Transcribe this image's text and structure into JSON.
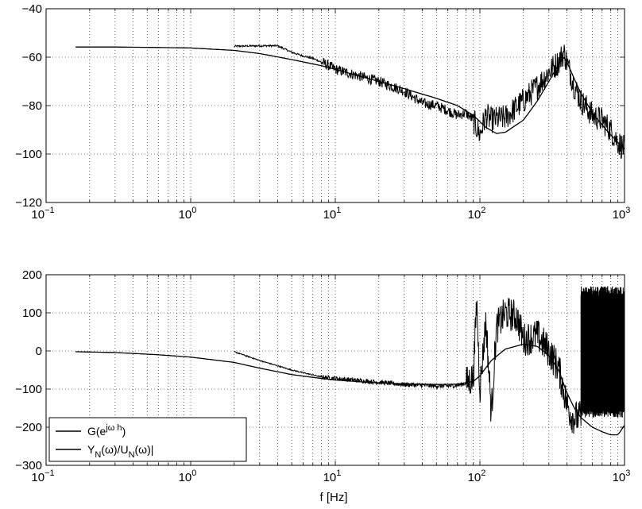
{
  "figure": {
    "xlabel": "f [Hz]"
  },
  "chart_data": [
    {
      "type": "line",
      "title": "",
      "xlabel": "",
      "ylabel": "",
      "xscale": "log",
      "xlim": [
        0.1,
        1000
      ],
      "ylim": [
        -120,
        -40
      ],
      "x_ticks": [
        0.1,
        1,
        10,
        100,
        1000
      ],
      "x_tick_labels": [
        {
          "base": "10",
          "exp": "−1"
        },
        {
          "base": "10",
          "exp": "0"
        },
        {
          "base": "10",
          "exp": "1"
        },
        {
          "base": "10",
          "exp": "2"
        },
        {
          "base": "10",
          "exp": "3"
        }
      ],
      "y_ticks": [
        -120,
        -100,
        -80,
        -60,
        -40
      ],
      "y_tick_labels": [
        "−120",
        "−100",
        "−80",
        "−60",
        "−40"
      ],
      "grid": true,
      "series": [
        {
          "color": "#000000",
          "x": [
            0.16,
            0.3,
            0.6,
            1,
            2,
            3,
            5,
            8,
            10,
            15,
            20,
            30,
            50,
            70,
            90,
            110,
            130,
            150,
            200,
            250,
            300,
            350,
            380,
            400,
            450,
            500,
            600,
            700,
            800,
            1000
          ],
          "y": [
            -55.8,
            -55.8,
            -56,
            -56.2,
            -57.2,
            -58.5,
            -61,
            -63.5,
            -65,
            -68,
            -70,
            -73,
            -77,
            -80,
            -84,
            -89,
            -91.5,
            -91,
            -86,
            -78,
            -70,
            -63,
            -60,
            -62,
            -69,
            -75,
            -83,
            -88,
            -92,
            -98
          ]
        },
        {
          "color": "#000000",
          "noise": true,
          "x": [
            2,
            3,
            4,
            5,
            6,
            7,
            8,
            9,
            10,
            15,
            20,
            30,
            40,
            50,
            60,
            70,
            80,
            90,
            100,
            110,
            120,
            150,
            200,
            250,
            300,
            350,
            380,
            400,
            450,
            500,
            600,
            700,
            800,
            900,
            1000
          ],
          "y": [
            -55.5,
            -55.3,
            -55.3,
            -58,
            -59.5,
            -60.5,
            -62,
            -63.5,
            -65,
            -68,
            -70,
            -74,
            -79,
            -80,
            -82,
            -84,
            -83,
            -86,
            -92,
            -84,
            -86,
            -85,
            -78,
            -72,
            -66,
            -62,
            -58,
            -62,
            -72,
            -78,
            -84,
            -86,
            -90,
            -95,
            -98
          ]
        }
      ]
    },
    {
      "type": "line",
      "title": "",
      "xlabel": "f [Hz]",
      "ylabel": "",
      "xscale": "log",
      "xlim": [
        0.1,
        1000
      ],
      "ylim": [
        -300,
        200
      ],
      "x_ticks": [
        0.1,
        1,
        10,
        100,
        1000
      ],
      "x_tick_labels": [
        {
          "base": "10",
          "exp": "−1"
        },
        {
          "base": "10",
          "exp": "0"
        },
        {
          "base": "10",
          "exp": "1"
        },
        {
          "base": "10",
          "exp": "2"
        },
        {
          "base": "10",
          "exp": "3"
        }
      ],
      "y_ticks": [
        -300,
        -200,
        -100,
        0,
        100,
        200
      ],
      "y_tick_labels": [
        "−300",
        "−200",
        "−100",
        "0",
        "100",
        "200"
      ],
      "grid": true,
      "legend": {
        "placement": "bottom-left",
        "entries": [
          {
            "text": "G(e",
            "sup": "jω h",
            "tail": ")"
          },
          {
            "text": "Y",
            "sub1": "N",
            "mid": "(ω)/U",
            "sub2": "N",
            "tail": "(ω)|"
          }
        ]
      },
      "series": [
        {
          "color": "#000000",
          "x": [
            0.16,
            0.3,
            0.6,
            1,
            2,
            3,
            5,
            8,
            10,
            15,
            20,
            30,
            50,
            70,
            90,
            100,
            120,
            150,
            200,
            250,
            300,
            350,
            400,
            450,
            500,
            600,
            700,
            800,
            900,
            1000
          ],
          "y": [
            -2,
            -4,
            -10,
            -16,
            -30,
            -45,
            -62,
            -72,
            -76,
            -81,
            -84,
            -86,
            -88,
            -87,
            -80,
            -65,
            -25,
            5,
            18,
            12,
            -12,
            -50,
            -110,
            -150,
            -175,
            -200,
            -212,
            -220,
            -220,
            -195
          ]
        },
        {
          "color": "#000000",
          "noise": true,
          "x": [
            2,
            3,
            5,
            8,
            10,
            15,
            20,
            30,
            40,
            50,
            60,
            70,
            80,
            90,
            95,
            100,
            110,
            120,
            130,
            150,
            180,
            200,
            250,
            300,
            350,
            400,
            430,
            450,
            500
          ],
          "y": [
            -2,
            -25,
            -50,
            -68,
            -72,
            -78,
            -82,
            -88,
            -90,
            -92,
            -92,
            -90,
            -85,
            -70,
            130,
            -100,
            80,
            -165,
            60,
            100,
            90,
            30,
            40,
            0,
            -45,
            -140,
            -170,
            -175,
            -175
          ]
        }
      ]
    }
  ]
}
